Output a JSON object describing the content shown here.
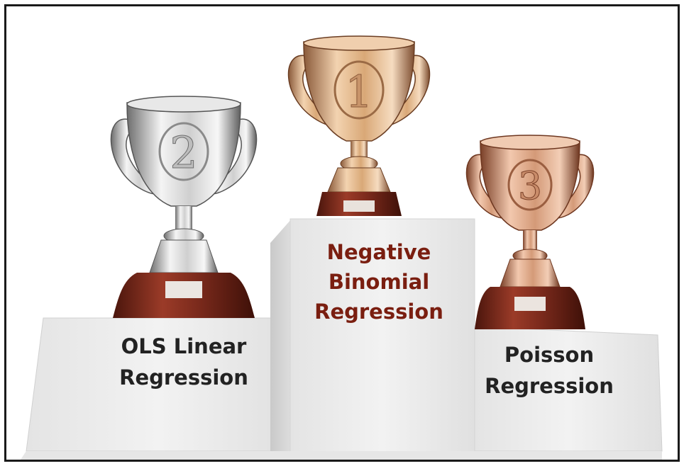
{
  "podium": {
    "first": {
      "trophy_number": "1",
      "label_lines": [
        "Negative",
        "Binomial",
        "Regression"
      ]
    },
    "second": {
      "trophy_number": "2",
      "label_lines": [
        "OLS Linear",
        "Regression"
      ]
    },
    "third": {
      "trophy_number": "3",
      "label_lines": [
        "Poisson",
        "Regression"
      ]
    }
  },
  "colors": {
    "first_label": "#7a1e10",
    "side_labels": "#222222",
    "gold": "#d9a877",
    "silver": "#cfcfcf",
    "bronze": "#d49a78",
    "base": "#7b2a1c"
  }
}
